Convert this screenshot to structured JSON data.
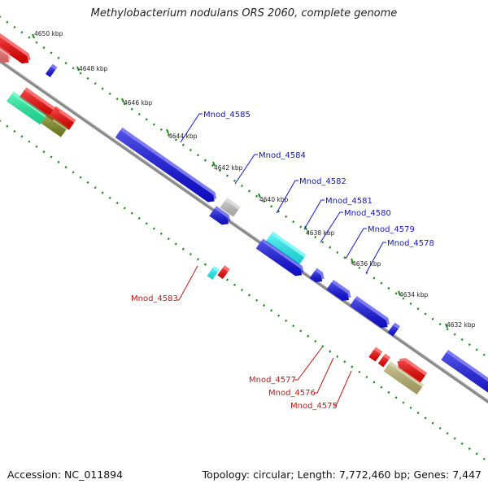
{
  "title": "Methylobacterium nodulans ORS 2060, complete genome",
  "footer": {
    "accession": "Accession: NC_011894",
    "summary": "Topology: circular; Length: 7,772,460 bp; Genes: 7,447"
  },
  "kbp_ticks": [
    "4650 kbp",
    "4648 kbp",
    "4646 kbp",
    "4644 kbp",
    "4642 kbp",
    "4640 kbp",
    "4638 kbp",
    "4636 kbp",
    "4634 kbp",
    "4632 kbp"
  ],
  "genes_plus": [
    "Mnod_4585",
    "Mnod_4584",
    "Mnod_4582",
    "Mnod_4581",
    "Mnod_4580",
    "Mnod_4579",
    "Mnod_4578"
  ],
  "genes_minus": [
    "Mnod_4583",
    "Mnod_4577",
    "Mnod_4576",
    "Mnod_4575"
  ],
  "colors": {
    "plus_label": "#1414c8",
    "minus_label": "#c81414",
    "backbone": "#8a8a8a",
    "dotted_track": "#1a8a1a",
    "blue_gene": "#1010e0",
    "red_gene": "#ee0000",
    "cyan_gene": "#22f0f0",
    "gray_gene": "#c0c0c0",
    "green_gene": "#20f0a0",
    "olive_gene": "#7a8a20",
    "khaki_gene": "#b8b070",
    "purple_gene": "#7070d0"
  }
}
